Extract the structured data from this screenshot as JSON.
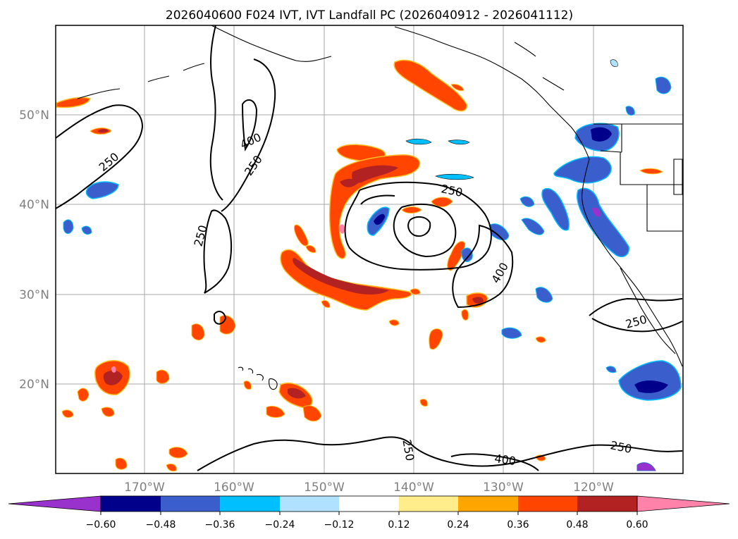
{
  "title": "2026040600 F024 IVT, IVT Landfall PC (2026040912 - 2026041112)",
  "map": {
    "lat_labels": [
      "50°N",
      "40°N",
      "30°N",
      "20°N"
    ],
    "lon_labels": [
      "170°W",
      "160°W",
      "150°W",
      "140°W",
      "130°W",
      "120°W"
    ],
    "contour_labels": [
      "250",
      "400",
      "250",
      "250",
      "250",
      "400",
      "250",
      "250",
      "400",
      "250"
    ]
  },
  "colorbar": {
    "colors": [
      "#9932cc",
      "#00008b",
      "#3a5fcd",
      "#00bfff",
      "#b0e2ff",
      "#ffffff",
      "#ffec8b",
      "#ffa500",
      "#ff4500",
      "#b22222",
      "#ff82ab"
    ],
    "ticks": [
      "−0.60",
      "−0.48",
      "−0.36",
      "−0.24",
      "−0.12",
      "0.12",
      "0.24",
      "0.36",
      "0.48",
      "0.60"
    ]
  }
}
